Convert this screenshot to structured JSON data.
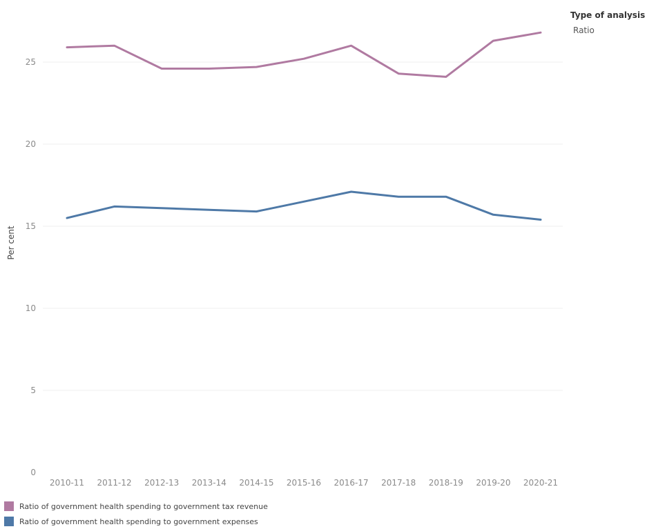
{
  "filter": {
    "title": "Type of analysis",
    "value": "Ratio"
  },
  "colors": {
    "tax_revenue": "#b07aa1",
    "expenses": "#4e79a7",
    "grid": "#efefef"
  },
  "chart_data": {
    "type": "line",
    "title": "",
    "xlabel": "",
    "ylabel": "Per cent",
    "ylim": [
      0,
      28
    ],
    "yticks": [
      0,
      5,
      10,
      15,
      20,
      25
    ],
    "x": [
      "2010-11",
      "2011-12",
      "2012-13",
      "2013-14",
      "2014-15",
      "2015-16",
      "2016-17",
      "2017-18",
      "2018-19",
      "2019-20",
      "2020-21"
    ],
    "series": [
      {
        "name": "Ratio of government health spending to government tax revenue",
        "values": [
          25.9,
          26.0,
          24.6,
          24.6,
          24.7,
          25.2,
          26.0,
          24.3,
          24.1,
          26.3,
          26.8
        ]
      },
      {
        "name": "Ratio of government health spending to government expenses",
        "values": [
          15.5,
          16.2,
          16.1,
          16.0,
          15.9,
          16.5,
          17.1,
          16.8,
          16.8,
          15.7,
          15.4
        ]
      }
    ],
    "grid": true,
    "legend": "bottom-left"
  }
}
